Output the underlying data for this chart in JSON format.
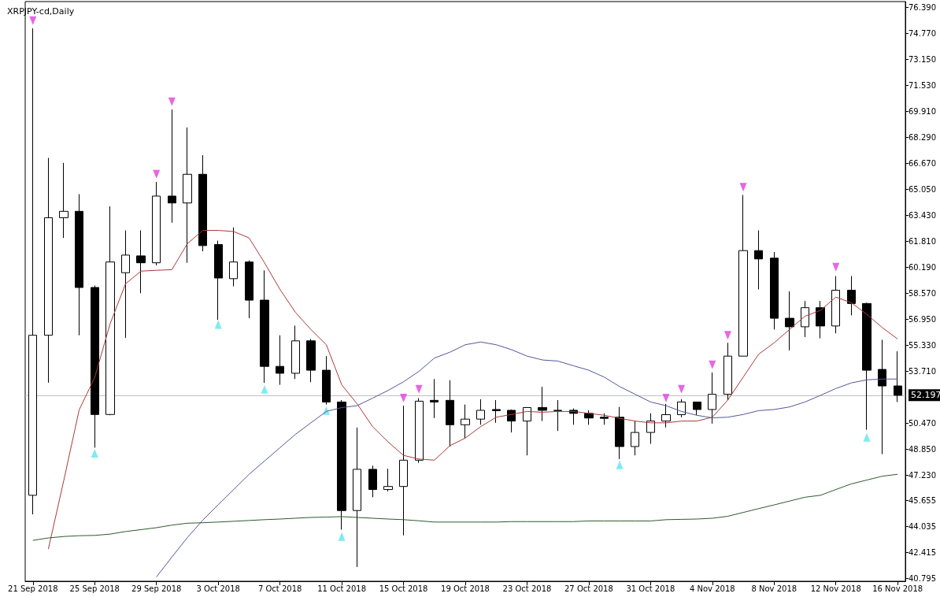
{
  "chart_data": {
    "type": "candlestick",
    "title": "XRPJPY-cd,Daily",
    "categories": [
      "21 Sep 2018",
      null,
      null,
      null,
      "25 Sep 2018",
      null,
      null,
      null,
      "29 Sep 2018",
      null,
      null,
      null,
      "3 Oct 2018",
      null,
      null,
      null,
      "7 Oct 2018",
      null,
      null,
      null,
      "11 Oct 2018",
      null,
      null,
      null,
      "15 Oct 2018",
      null,
      null,
      null,
      "19 Oct 2018",
      null,
      null,
      null,
      "23 Oct 2018",
      null,
      null,
      null,
      "27 Oct 2018",
      null,
      null,
      null,
      "31 Oct 2018",
      null,
      null,
      null,
      "4 Nov 2018",
      null,
      null,
      null,
      "8 Nov 2018",
      null,
      null,
      null,
      "12 Nov 2018",
      null,
      null,
      null,
      "16 Nov 2018"
    ],
    "ohlc": [
      [
        45.96,
        75.08,
        44.77,
        55.94
      ],
      [
        55.94,
        67.0,
        52.98,
        63.27
      ],
      [
        63.27,
        66.69,
        62.01,
        63.67
      ],
      [
        63.67,
        64.74,
        55.94,
        58.92
      ],
      [
        58.92,
        59.04,
        48.93,
        51.0
      ],
      [
        51.0,
        63.98,
        50.95,
        60.51
      ],
      [
        59.84,
        62.48,
        55.78,
        60.94
      ],
      [
        60.89,
        62.48,
        58.56,
        60.46
      ],
      [
        60.46,
        65.5,
        60.3,
        64.62
      ],
      [
        64.62,
        70.02,
        62.96,
        64.19
      ],
      [
        64.19,
        68.9,
        60.46,
        65.98
      ],
      [
        65.98,
        67.17,
        61.18,
        61.53
      ],
      [
        61.6,
        61.84,
        56.9,
        59.51
      ],
      [
        59.47,
        62.67,
        58.99,
        60.51
      ],
      [
        60.51,
        60.61,
        57.0,
        58.13
      ],
      [
        58.13,
        59.99,
        52.97,
        54.0
      ],
      [
        54.0,
        55.94,
        52.85,
        53.57
      ],
      [
        53.57,
        56.54,
        53.21,
        55.59
      ],
      [
        55.59,
        55.71,
        53.02,
        53.76
      ],
      [
        53.76,
        54.64,
        51.62,
        51.78
      ],
      [
        51.78,
        51.9,
        43.82,
        45.01
      ],
      [
        45.01,
        50.19,
        41.49,
        47.58
      ],
      [
        47.58,
        47.81,
        45.84,
        46.32
      ],
      [
        46.32,
        47.62,
        46.2,
        46.51
      ],
      [
        46.51,
        51.55,
        43.46,
        48.15
      ],
      [
        48.15,
        52.02,
        47.98,
        51.83
      ],
      [
        51.88,
        53.21,
        50.78,
        51.78
      ],
      [
        51.88,
        53.14,
        49.0,
        50.36
      ],
      [
        50.36,
        51.62,
        49.53,
        50.71
      ],
      [
        50.71,
        51.95,
        50.36,
        51.26
      ],
      [
        51.31,
        51.9,
        50.48,
        51.24
      ],
      [
        51.26,
        51.31,
        49.88,
        50.59
      ],
      [
        50.59,
        51.43,
        48.45,
        51.43
      ],
      [
        51.43,
        52.73,
        50.59,
        51.26
      ],
      [
        51.24,
        51.9,
        49.97,
        51.26
      ],
      [
        51.26,
        51.38,
        50.36,
        51.07
      ],
      [
        51.07,
        51.26,
        50.36,
        50.78
      ],
      [
        50.83,
        51.07,
        50.36,
        50.76
      ],
      [
        50.83,
        51.47,
        48.22,
        49.0
      ],
      [
        49.0,
        50.59,
        48.45,
        49.88
      ],
      [
        49.88,
        51.07,
        49.17,
        50.59
      ],
      [
        50.59,
        51.66,
        50.19,
        50.99
      ],
      [
        50.99,
        51.95,
        50.83,
        51.78
      ],
      [
        51.78,
        51.78,
        50.95,
        51.31
      ],
      [
        51.31,
        53.62,
        50.43,
        52.26
      ],
      [
        52.26,
        55.47,
        51.9,
        54.64
      ],
      [
        54.64,
        64.69,
        54.64,
        61.22
      ],
      [
        61.22,
        62.48,
        58.8,
        60.7
      ],
      [
        60.75,
        61.13,
        56.3,
        57.0
      ],
      [
        57.0,
        58.68,
        55.0,
        56.47
      ],
      [
        56.47,
        58.08,
        55.83,
        57.66
      ],
      [
        57.66,
        58.08,
        55.75,
        56.52
      ],
      [
        56.52,
        59.63,
        56.06,
        58.75
      ],
      [
        58.75,
        59.63,
        57.18,
        57.92
      ],
      [
        57.92,
        57.97,
        50.05,
        53.76
      ],
      [
        53.81,
        55.66,
        48.53,
        52.78
      ],
      [
        52.78,
        54.94,
        51.78,
        52.197
      ]
    ],
    "series": [
      {
        "type": "line",
        "color": "#a83a3a",
        "values": [
          null,
          42.61,
          46.89,
          51.3,
          53.3,
          56.66,
          59.15,
          59.94,
          59.99,
          60.03,
          61.65,
          62.48,
          62.48,
          62.41,
          62.01,
          60.46,
          58.8,
          57.37,
          56.3,
          55.35,
          52.85,
          51.66,
          50.24,
          49.29,
          48.45,
          48.22,
          48.15,
          49.05,
          49.53,
          50.24,
          50.83,
          51.0,
          51.19,
          51.14,
          51.19,
          51.19,
          51.07,
          50.95,
          50.76,
          50.59,
          50.48,
          50.48,
          50.59,
          50.59,
          50.83,
          51.9,
          53.33,
          54.76,
          55.47,
          56.3,
          57.13,
          57.49,
          58.32,
          57.97,
          57.25,
          56.42,
          55.71
        ]
      },
      {
        "type": "line",
        "color": "#55559a",
        "values": [
          null,
          null,
          null,
          null,
          null,
          null,
          null,
          null,
          40.87,
          42.11,
          43.32,
          44.41,
          45.37,
          46.32,
          47.27,
          48.1,
          48.93,
          49.76,
          50.48,
          51.19,
          51.43,
          51.55,
          52.02,
          52.5,
          53.04,
          53.69,
          54.52,
          54.88,
          55.35,
          55.52,
          55.35,
          55.04,
          54.64,
          54.4,
          54.33,
          54.04,
          53.76,
          53.33,
          52.74,
          52.26,
          51.78,
          51.55,
          51.19,
          50.95,
          50.79,
          50.83,
          51.0,
          51.24,
          51.31,
          51.47,
          51.78,
          52.19,
          52.62,
          52.97,
          53.16,
          53.21,
          53.21
        ]
      },
      {
        "type": "line",
        "color": "#2e5a2e",
        "values": [
          43.15,
          43.3,
          43.39,
          43.44,
          43.46,
          43.54,
          43.7,
          43.82,
          43.94,
          44.1,
          44.22,
          44.25,
          44.29,
          44.34,
          44.39,
          44.44,
          44.48,
          44.53,
          44.58,
          44.6,
          44.63,
          44.58,
          44.53,
          44.48,
          44.44,
          44.37,
          44.29,
          44.29,
          44.29,
          44.29,
          44.29,
          44.32,
          44.32,
          44.32,
          44.32,
          44.32,
          44.36,
          44.36,
          44.36,
          44.36,
          44.36,
          44.44,
          44.46,
          44.48,
          44.53,
          44.65,
          44.89,
          45.13,
          45.36,
          45.6,
          45.84,
          45.96,
          46.32,
          46.67,
          46.91,
          47.15,
          47.27
        ]
      },
      {
        "type": "scatter",
        "color": "#e040e0",
        "marker": "triangle",
        "values": [
          75.56,
          null,
          null,
          null,
          null,
          null,
          null,
          null,
          65.98,
          70.5,
          null,
          null,
          null,
          null,
          null,
          null,
          null,
          null,
          null,
          null,
          null,
          null,
          null,
          null,
          52.02,
          52.57,
          null,
          null,
          null,
          null,
          null,
          null,
          null,
          null,
          null,
          null,
          null,
          null,
          null,
          null,
          null,
          52.02,
          52.57,
          null,
          54.09,
          55.94,
          65.17,
          null,
          null,
          null,
          null,
          null,
          60.18,
          null,
          null,
          null,
          null
        ]
      },
      {
        "type": "scatter",
        "color": "#5ee6f0",
        "marker": "triangle",
        "values": [
          null,
          null,
          null,
          null,
          48.58,
          null,
          null,
          null,
          null,
          null,
          null,
          null,
          56.61,
          null,
          null,
          52.57,
          null,
          null,
          null,
          51.24,
          43.39,
          null,
          null,
          null,
          null,
          null,
          null,
          null,
          null,
          null,
          null,
          null,
          null,
          null,
          null,
          null,
          null,
          null,
          47.86,
          null,
          null,
          null,
          null,
          null,
          null,
          null,
          null,
          null,
          null,
          null,
          null,
          null,
          null,
          null,
          49.57,
          null,
          null
        ]
      }
    ],
    "ylim": [
      40.6,
      76.75
    ],
    "yticks": [
      {
        "value": 40.795,
        "label": "40.795"
      },
      {
        "value": 42.415,
        "label": "42.415"
      },
      {
        "value": 44.035,
        "label": "44.035"
      },
      {
        "value": 45.655,
        "label": "45.655"
      },
      {
        "value": 47.23,
        "label": "47.230"
      },
      {
        "value": 48.85,
        "label": "48.850"
      },
      {
        "value": 50.47,
        "label": "50.470"
      },
      {
        "value": 53.71,
        "label": "53.710"
      },
      {
        "value": 55.33,
        "label": "55.330"
      },
      {
        "value": 56.95,
        "label": "56.950"
      },
      {
        "value": 58.57,
        "label": "58.570"
      },
      {
        "value": 60.19,
        "label": "60.190"
      },
      {
        "value": 61.81,
        "label": "61.810"
      },
      {
        "value": 63.43,
        "label": "63.430"
      },
      {
        "value": 65.05,
        "label": "65.050"
      },
      {
        "value": 66.67,
        "label": "66.670"
      },
      {
        "value": 68.29,
        "label": "68.290"
      },
      {
        "value": 69.91,
        "label": "69.910"
      },
      {
        "value": 71.53,
        "label": "71.530"
      },
      {
        "value": 73.15,
        "label": "73.150"
      },
      {
        "value": 74.77,
        "label": "74.770"
      },
      {
        "value": 76.39,
        "label": "76.390"
      }
    ],
    "ref_lines": [
      {
        "axis": "y",
        "value": 52.197,
        "label": "52.197",
        "color": "#c0c0c0"
      }
    ],
    "grid": false
  }
}
